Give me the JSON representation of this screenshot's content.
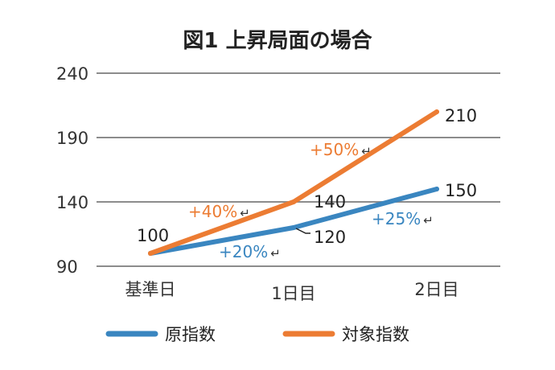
{
  "chart_data": {
    "type": "line",
    "title": "図1 上昇局面の場合",
    "xlabel": "",
    "ylabel": "",
    "categories": [
      "基準日",
      "1日目",
      "2日目"
    ],
    "ylim": [
      90,
      240
    ],
    "yticks": [
      "90",
      "140",
      "190",
      "240"
    ],
    "grid": true,
    "legend_position": "bottom",
    "series": [
      {
        "name": "原指数",
        "color": "#3a86c0",
        "values": [
          100,
          120,
          150
        ],
        "labels": [
          "100",
          "120",
          "150"
        ],
        "changes": [
          "+20%",
          "+25%"
        ]
      },
      {
        "name": "対象指数",
        "color": "#ec7c33",
        "values": [
          100,
          140,
          210
        ],
        "labels": [
          "",
          "140",
          "210"
        ],
        "changes": [
          "+40%",
          "+50%"
        ]
      }
    ],
    "change_marker": "↵"
  }
}
